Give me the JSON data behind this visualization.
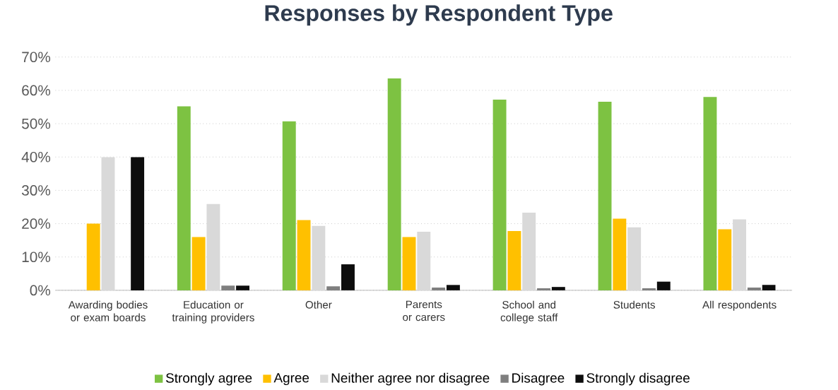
{
  "chart_data": {
    "type": "bar",
    "title": "Responses by Respondent Type",
    "categories": [
      "Awarding bodies or exam boards",
      "Education or training providers",
      "Other",
      "Parents or carers",
      "School and college staff",
      "Students",
      "All respondents"
    ],
    "series": [
      {
        "name": "Strongly agree",
        "color": "#7dc242",
        "values": [
          0,
          55.2,
          50.7,
          63.6,
          57.2,
          56.6,
          58.0
        ]
      },
      {
        "name": "Agree",
        "color": "#ffc000",
        "values": [
          20,
          16.0,
          21.1,
          16.0,
          17.8,
          21.5,
          18.3
        ]
      },
      {
        "name": "Neither agree nor disagree",
        "color": "#d9d9d9",
        "values": [
          40,
          25.9,
          19.3,
          17.6,
          23.3,
          18.9,
          21.3
        ]
      },
      {
        "name": "Disagree",
        "color": "#7f7f7f",
        "values": [
          0,
          1.4,
          1.2,
          0.8,
          0.6,
          0.6,
          0.8
        ]
      },
      {
        "name": "Strongly disagree",
        "color": "#0d0d0d",
        "values": [
          40,
          1.4,
          7.8,
          1.6,
          1.0,
          2.6,
          1.6
        ]
      }
    ],
    "ylim": [
      0,
      70
    ],
    "yticks": [
      {
        "value": 0,
        "label": "0%"
      },
      {
        "value": 10,
        "label": "10%"
      },
      {
        "value": 20,
        "label": "20%"
      },
      {
        "value": 30,
        "label": "30%"
      },
      {
        "value": 40,
        "label": "40%"
      },
      {
        "value": 50,
        "label": "50%"
      },
      {
        "value": 60,
        "label": "60%"
      },
      {
        "value": 70,
        "label": "70%"
      }
    ],
    "grid": "y",
    "legend": "bottom"
  }
}
